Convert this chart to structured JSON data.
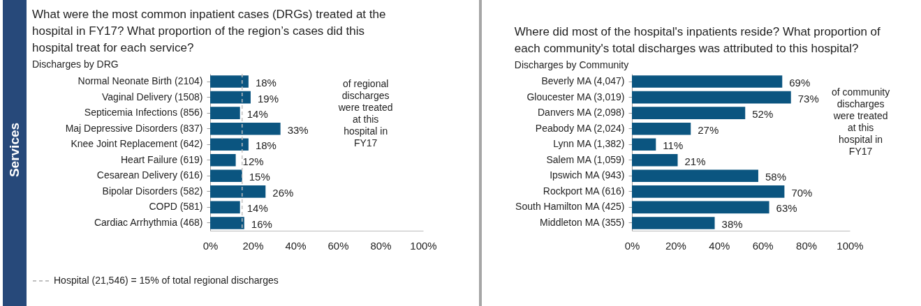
{
  "chart_data": [
    {
      "type": "bar",
      "orientation": "horizontal",
      "title": "What were the most common inpatient cases (DRGs) treated at the hospital in FY17? What proportion of the region’s cases did this hospital treat for each service?",
      "subtitle": "Discharges by DRG",
      "categories": [
        "Normal Neonate Birth (2104)",
        "Vaginal Delivery (1508)",
        "Septicemia Infections (856)",
        "Maj Depressive Disorders (837)",
        "Knee Joint Replacement (642)",
        "Heart Failure  (619)",
        "Cesarean Delivery (616)",
        "Bipolar Disorders (582)",
        "COPD (581)",
        "Cardiac Arrhythmia  (468)"
      ],
      "values": [
        18,
        19,
        14,
        33,
        18,
        12,
        15,
        26,
        14,
        16
      ],
      "value_labels": [
        "18%",
        "19%",
        "14%",
        "33%",
        "18%",
        "12%",
        "15%",
        "26%",
        "14%",
        "16%"
      ],
      "color": "#0b5580",
      "xlim": [
        0,
        100
      ],
      "xticks": [
        {
          "value": 0,
          "label": "0%"
        },
        {
          "value": 20,
          "label": "20%"
        },
        {
          "value": 40,
          "label": "40%"
        },
        {
          "value": 60,
          "label": "60%"
        },
        {
          "value": 80,
          "label": "80%"
        },
        {
          "value": 100,
          "label": "100%"
        }
      ],
      "ref_lines": [
        {
          "axis": "x",
          "value": 15,
          "label": "Hospital  (21,546) = 15%  of total regional  discharges",
          "color": "#bfbfbf",
          "line_style": "dashed"
        }
      ],
      "annotations": [
        "of regional discharges were treated at this hospital in FY17",
        "Services"
      ]
    },
    {
      "type": "bar",
      "orientation": "horizontal",
      "title": "Where did most of the hospital's inpatients reside? What proportion of each community's total discharges was attributed to this hospital?",
      "subtitle": "Discharges by Community",
      "categories": [
        "Beverly MA (4,047)",
        "Gloucester MA (3,019)",
        "Danvers MA (2,098)",
        "Peabody MA (2,024)",
        "Lynn MA (1,382)",
        "Salem MA (1,059)",
        "Ipswich MA (943)",
        "Rockport MA (616)",
        "South Hamilton MA (425)",
        "Middleton MA (355)"
      ],
      "values": [
        69,
        73,
        52,
        27,
        11,
        21,
        58,
        70,
        63,
        38
      ],
      "value_labels": [
        "69%",
        "73%",
        "52%",
        "27%",
        "11%",
        "21%",
        "58%",
        "70%",
        "63%",
        "38%"
      ],
      "color": "#0b5580",
      "xlim": [
        0,
        100
      ],
      "xticks": [
        {
          "value": 0,
          "label": "0%"
        },
        {
          "value": 20,
          "label": "20%"
        },
        {
          "value": 40,
          "label": "40%"
        },
        {
          "value": 60,
          "label": "60%"
        },
        {
          "value": 80,
          "label": "80%"
        },
        {
          "value": 100,
          "label": "100%"
        }
      ],
      "annotations": [
        "of community discharges were treated at this hospital in FY17"
      ]
    }
  ]
}
